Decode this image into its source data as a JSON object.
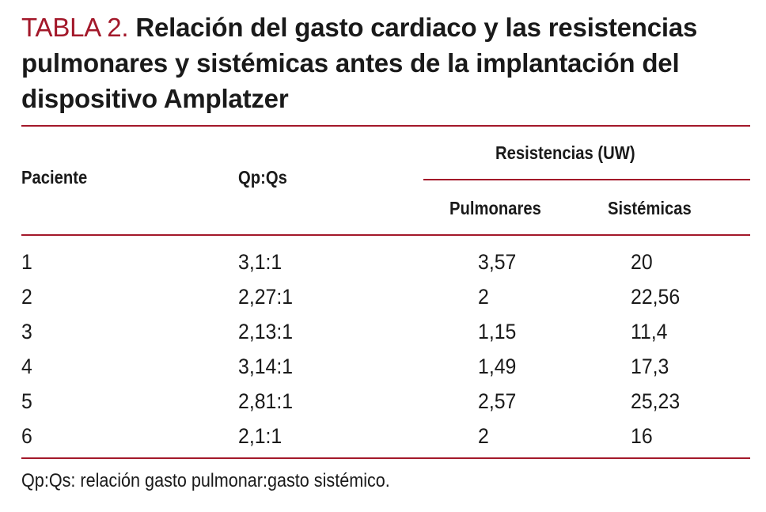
{
  "table": {
    "label": "TABLA 2.",
    "title": "Relación del gasto cardiaco y las resistencias pulmonares y sistémicas antes de la implantación del dispositivo Amplatzer",
    "headers": {
      "paciente": "Paciente",
      "qpqs": "Qp:Qs",
      "resistencias": "Resistencias (UW)",
      "pulmonares": "Pulmonares",
      "sistemicas": "Sistémicas"
    },
    "rows": [
      {
        "paciente": "1",
        "qpqs": "3,1:1",
        "pulmonares": "3,57",
        "sistemicas": "20"
      },
      {
        "paciente": "2",
        "qpqs": "2,27:1",
        "pulmonares": "2",
        "sistemicas": "22,56"
      },
      {
        "paciente": "3",
        "qpqs": "2,13:1",
        "pulmonares": "1,15",
        "sistemicas": "11,4"
      },
      {
        "paciente": "4",
        "qpqs": "3,14:1",
        "pulmonares": "1,49",
        "sistemicas": "17,3"
      },
      {
        "paciente": "5",
        "qpqs": "2,81:1",
        "pulmonares": "2,57",
        "sistemicas": "25,23"
      },
      {
        "paciente": "6",
        "qpqs": "2,1:1",
        "pulmonares": "2",
        "sistemicas": "16"
      }
    ],
    "footnote": "Qp:Qs: relación gasto pulmonar:gasto sistémico.",
    "accent_color": "#a3182a"
  }
}
